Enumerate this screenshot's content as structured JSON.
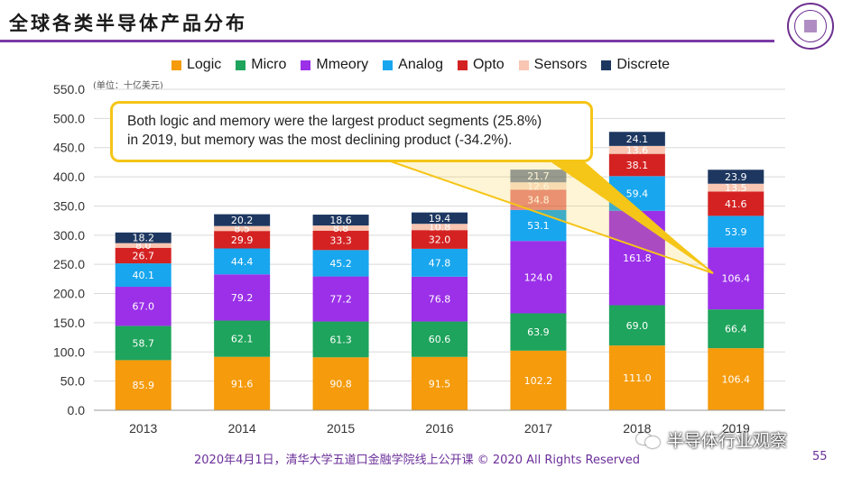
{
  "title": "全球各类半导体产品分布",
  "unit_note": "(单位：十亿美元)",
  "callout": {
    "line1": "Both logic and memory were the largest product segments (25.8%)",
    "line2": "in 2019, but memory was the most declining product (-34.2%)."
  },
  "footer": {
    "text": "2020年4月1日，清华大学五道口金融学院线上公开课 © 2020 All Rights Reserved",
    "page": "55"
  },
  "watermark": "半导体行业观察",
  "chart_data": {
    "type": "bar",
    "stacked": true,
    "categories": [
      "2013",
      "2014",
      "2015",
      "2016",
      "2017",
      "2018",
      "2019"
    ],
    "series": [
      {
        "name": "Logic",
        "color": "#f59b0c",
        "values": [
          85.9,
          91.6,
          90.8,
          91.5,
          102.2,
          111.0,
          106.4
        ]
      },
      {
        "name": "Micro",
        "color": "#1ea45c",
        "values": [
          58.7,
          62.1,
          61.3,
          60.6,
          63.9,
          69.0,
          66.4
        ]
      },
      {
        "name": "Mmeory",
        "color": "#9b30e8",
        "values": [
          67.0,
          79.2,
          77.2,
          76.8,
          124.0,
          161.8,
          106.4
        ]
      },
      {
        "name": "Analog",
        "color": "#18a6ee",
        "values": [
          40.1,
          44.4,
          45.2,
          47.8,
          53.1,
          59.4,
          53.9
        ]
      },
      {
        "name": "Opto",
        "color": "#d42222",
        "values": [
          26.7,
          29.9,
          33.3,
          32.0,
          34.8,
          38.1,
          41.6
        ]
      },
      {
        "name": "Sensors",
        "color": "#f8c6b2",
        "values": [
          8.0,
          8.5,
          8.8,
          10.8,
          12.6,
          13.6,
          13.5
        ]
      },
      {
        "name": "Discrete",
        "color": "#1d3760",
        "values": [
          18.2,
          20.2,
          18.6,
          19.4,
          21.7,
          24.1,
          23.9
        ]
      }
    ],
    "ylim": [
      0,
      550
    ],
    "yticks": [
      "0.0",
      "50.0",
      "100.0",
      "150.0",
      "200.0",
      "250.0",
      "300.0",
      "350.0",
      "400.0",
      "450.0",
      "500.0",
      "550.0"
    ],
    "xlabel": "",
    "ylabel": "",
    "grid": true,
    "legend_position": "top",
    "faded_categories": [
      "2017"
    ]
  }
}
